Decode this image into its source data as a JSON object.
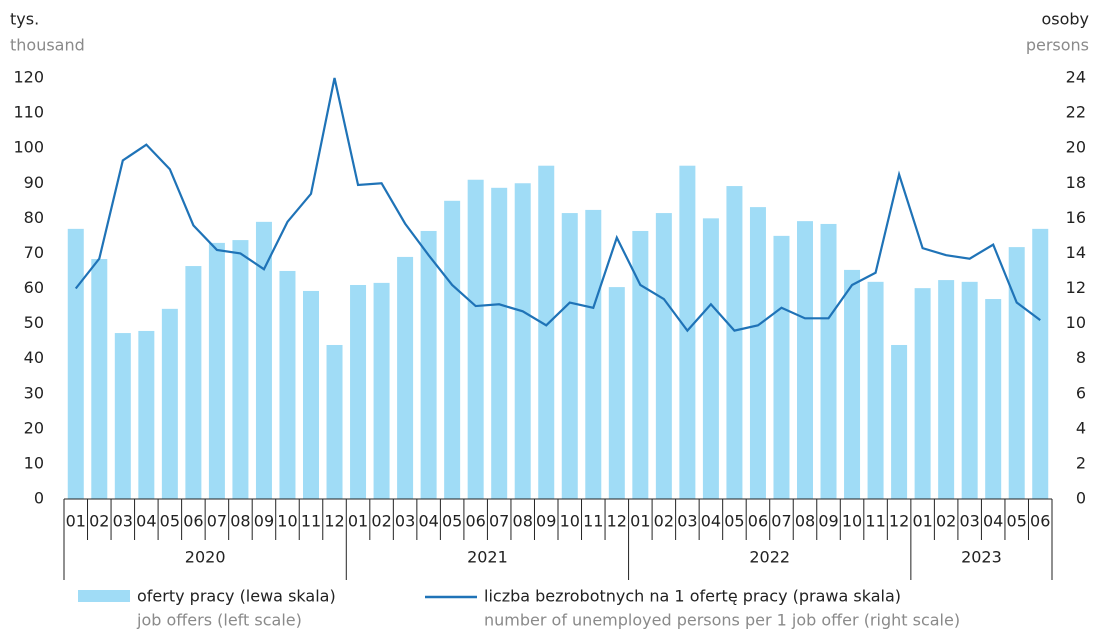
{
  "chart_data": {
    "type": "bar_line",
    "y_label": "tys.",
    "y_label_en": "thousand",
    "y2_label": "osoby",
    "y2_label_en": "persons",
    "categories": [
      "01",
      "02",
      "03",
      "04",
      "05",
      "06",
      "07",
      "08",
      "09",
      "10",
      "11",
      "12",
      "01",
      "02",
      "03",
      "04",
      "05",
      "06",
      "07",
      "08",
      "09",
      "10",
      "11",
      "12",
      "01",
      "02",
      "03",
      "04",
      "05",
      "06",
      "07",
      "08",
      "09",
      "10",
      "11",
      "12",
      "01",
      "02",
      "03",
      "04",
      "05",
      "06"
    ],
    "years": [
      "2020",
      "2021",
      "2022",
      "2023"
    ],
    "ylim": [
      0,
      120
    ],
    "yticks": [
      0,
      10,
      20,
      30,
      40,
      50,
      60,
      70,
      80,
      90,
      100,
      110,
      120
    ],
    "y2lim": [
      0,
      24
    ],
    "y2ticks": [
      0,
      2,
      4,
      6,
      8,
      10,
      12,
      14,
      16,
      18,
      20,
      22,
      24
    ],
    "series": [
      {
        "name": "oferty pracy (lewa skala)",
        "name_en": "job offers (left scale)",
        "type": "bar",
        "color": "#a0dcf6",
        "values": [
          77,
          68.4,
          47.3,
          47.9,
          54.2,
          66.4,
          73,
          73.8,
          79,
          65,
          59.3,
          43.9,
          61,
          61.6,
          69,
          76.4,
          85,
          91,
          88.7,
          90,
          95,
          81.5,
          82.4,
          60.4,
          76.4,
          81.5,
          95,
          80,
          89.2,
          83.2,
          75,
          79.2,
          78.4,
          65.3,
          61.9,
          43.9,
          60.1,
          62.4,
          61.9,
          57,
          71.8,
          77
        ]
      },
      {
        "name": "liczba bezrobotnych na 1 ofertę pracy (prawa skala)",
        "name_en": "number of unemployed persons per 1 job offer (right scale)",
        "type": "line",
        "axis": "y2",
        "color": "#1f73b7",
        "values": [
          12.0,
          13.7,
          19.3,
          20.2,
          18.8,
          15.6,
          14.2,
          14.0,
          13.1,
          15.8,
          17.4,
          24.0,
          17.9,
          18.0,
          15.7,
          13.9,
          12.2,
          11.0,
          11.1,
          10.7,
          9.9,
          11.2,
          10.9,
          14.9,
          12.2,
          11.4,
          9.6,
          11.1,
          9.6,
          9.9,
          10.9,
          10.3,
          10.3,
          12.2,
          12.9,
          18.5,
          14.3,
          13.9,
          13.7,
          14.5,
          11.2,
          10.2
        ]
      }
    ]
  }
}
